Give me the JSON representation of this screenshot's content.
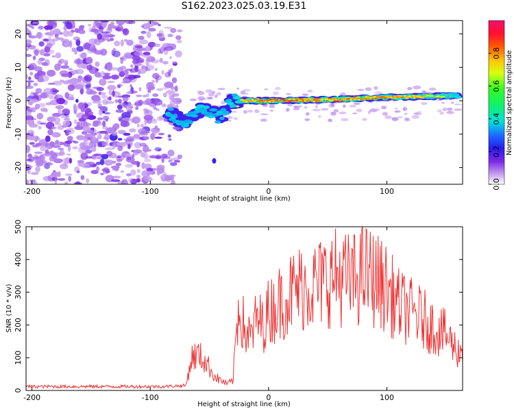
{
  "title": "S162.2023.025.03.19.E31",
  "chart_data": [
    {
      "type": "heatmap",
      "xlabel": "Height of straight line (km)",
      "ylabel": "Frequency (Hz)",
      "xlim": [
        -205,
        164
      ],
      "ylim": [
        -25,
        24
      ],
      "xticks": [
        -200,
        -100,
        0,
        100
      ],
      "yticks": [
        20,
        10,
        0,
        -10,
        -20
      ],
      "colorbar": {
        "label": "Normalized spectral amplitude",
        "range": [
          0,
          1
        ],
        "ticks": [
          0.0,
          0.2,
          0.4,
          0.6,
          0.8
        ],
        "colormap": "rainbow (purple-blue-cyan-green-yellow-orange-red-magenta)"
      },
      "description_track": [
        {
          "x": -85,
          "freq": -3,
          "amp": 0.35
        },
        {
          "x": -70,
          "freq": -7,
          "amp": 0.3
        },
        {
          "x": -55,
          "freq": -2,
          "amp": 0.35
        },
        {
          "x": -42,
          "freq": -5,
          "amp": 0.3
        },
        {
          "x": -30,
          "freq": 0,
          "amp": 0.4
        },
        {
          "x": 0,
          "freq": 0,
          "amp": 0.85
        },
        {
          "x": 50,
          "freq": 0.3,
          "amp": 0.7
        },
        {
          "x": 100,
          "freq": 1,
          "amp": 0.7
        },
        {
          "x": 160,
          "freq": 1.5,
          "amp": 0.4
        }
      ]
    },
    {
      "type": "line",
      "xlabel": "Height of straight line (km)",
      "ylabel": "SNR (10 * v/v)",
      "xlim": [
        -205,
        164
      ],
      "ylim": [
        0,
        500
      ],
      "xticks": [
        -200,
        -100,
        0,
        100
      ],
      "yticks": [
        0,
        100,
        200,
        300,
        400,
        500
      ],
      "color": "#ee3333",
      "series": [
        {
          "x": [
            -205,
            -180,
            -150,
            -120,
            -90,
            -70,
            -65,
            -60,
            -55,
            -50,
            -45,
            -40,
            -35,
            -30,
            -27,
            -25,
            -20,
            -15,
            -10,
            -5,
            0,
            10,
            20,
            30,
            40,
            50,
            60,
            70,
            80,
            90,
            100,
            110,
            120,
            130,
            140,
            150,
            160,
            164
          ],
          "y": [
            12,
            12,
            12,
            12,
            12,
            15,
            100,
            110,
            95,
            70,
            40,
            30,
            20,
            30,
            200,
            260,
            180,
            160,
            220,
            200,
            240,
            270,
            300,
            320,
            320,
            340,
            350,
            330,
            360,
            340,
            310,
            260,
            240,
            220,
            190,
            170,
            120,
            120
          ]
        }
      ]
    }
  ]
}
